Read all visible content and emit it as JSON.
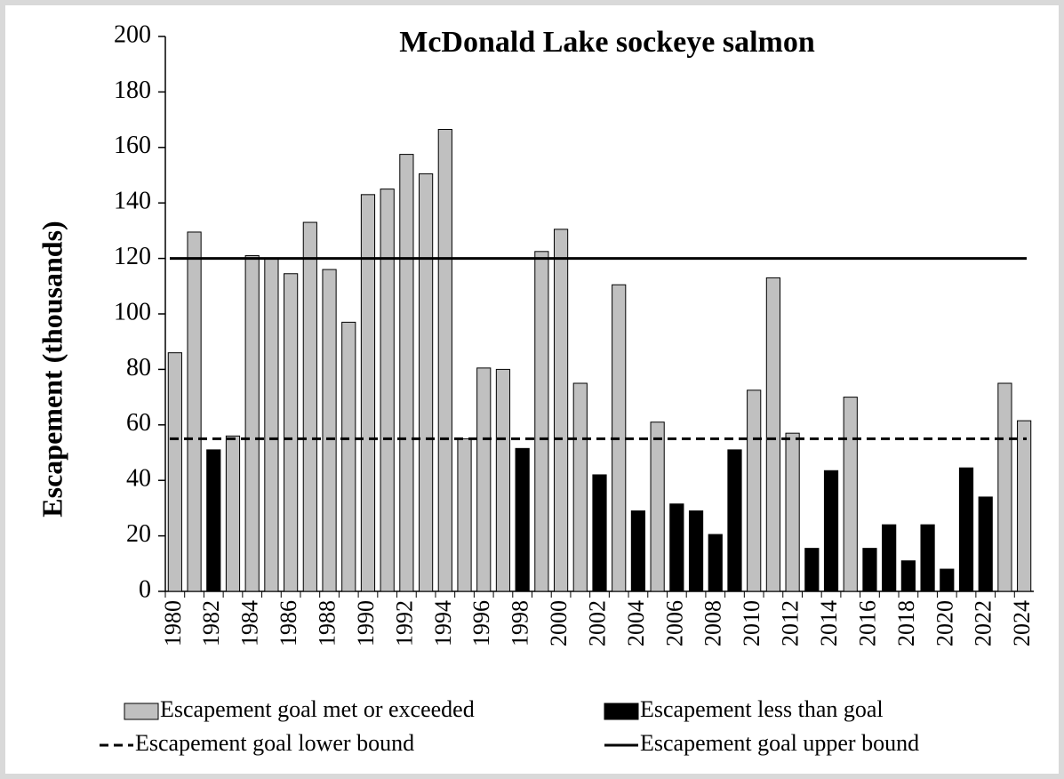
{
  "chart_data": {
    "type": "bar",
    "title": "McDonald Lake sockeye salmon",
    "y_label": "Escapement (thousands)",
    "categories": [
      "1980",
      null,
      "1982",
      null,
      "1984",
      null,
      "1986",
      null,
      "1988",
      null,
      "1990",
      null,
      "1992",
      null,
      "1994",
      null,
      "1996",
      null,
      "1998",
      null,
      "2000",
      null,
      "2002",
      null,
      "2004",
      null,
      "2006",
      null,
      "2008",
      null,
      "2010",
      null,
      "2012",
      null,
      "2014",
      null,
      "2016",
      null,
      "2018",
      null,
      "2020",
      null,
      "2022",
      null,
      "2024"
    ],
    "series": [
      {
        "name": "Escapement goal met or exceeded",
        "color": "#c0c0c0",
        "values": [
          86,
          129.5,
          null,
          56,
          121,
          120,
          114.5,
          133,
          116,
          97,
          143,
          145,
          157.5,
          150.5,
          166.5,
          55,
          80.5,
          80,
          null,
          122.5,
          130.5,
          75,
          null,
          110.5,
          null,
          61,
          null,
          null,
          null,
          null,
          72.5,
          113,
          57,
          null,
          null,
          70,
          null,
          null,
          null,
          null,
          null,
          null,
          null,
          75,
          61.5
        ]
      },
      {
        "name": "Escapement less than goal",
        "color": "#000000",
        "values": [
          null,
          null,
          51,
          null,
          null,
          null,
          null,
          null,
          null,
          null,
          null,
          null,
          null,
          null,
          null,
          null,
          null,
          null,
          51.5,
          null,
          null,
          null,
          42,
          null,
          29,
          null,
          31.5,
          29,
          20.5,
          51,
          null,
          null,
          null,
          15.5,
          43.5,
          null,
          15.5,
          24,
          11,
          24,
          8,
          44.5,
          34,
          null,
          null
        ]
      }
    ],
    "reference_lines": [
      {
        "name": "Escapement goal lower bound",
        "value": 55,
        "style": "dashed",
        "color": "#000000"
      },
      {
        "name": "Escapement goal upper bound",
        "value": 120,
        "style": "solid",
        "color": "#000000"
      }
    ],
    "ylim": [
      0,
      200
    ],
    "yticks": [
      0,
      20,
      40,
      60,
      80,
      100,
      120,
      140,
      160,
      180,
      200
    ],
    "grid": false
  }
}
